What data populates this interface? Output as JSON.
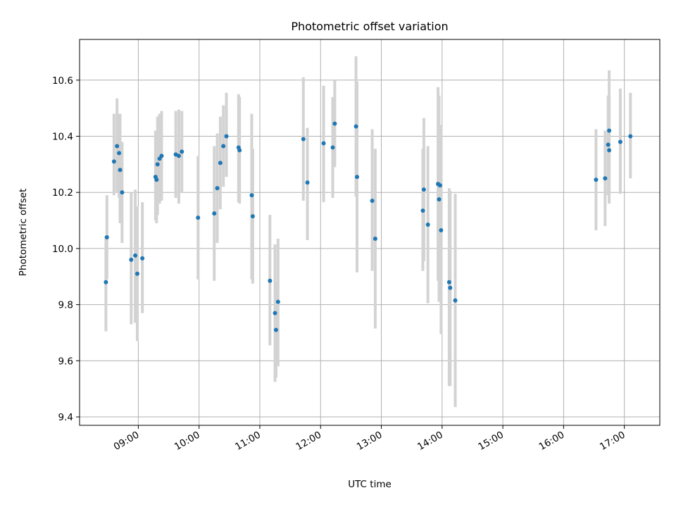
{
  "chart_data": {
    "type": "scatter",
    "title": "Photometric offset variation",
    "xlabel": "UTC time",
    "ylabel": "Photometric offset",
    "xlim": [
      "08:02",
      "17:35"
    ],
    "ylim": [
      9.37,
      10.745
    ],
    "x_ticks": [
      "09:00",
      "10:00",
      "11:00",
      "12:00",
      "13:00",
      "14:00",
      "15:00",
      "16:00",
      "17:00"
    ],
    "y_ticks": [
      "9.4",
      "9.6",
      "9.8",
      "10.0",
      "10.2",
      "10.4",
      "10.6"
    ],
    "grid": true,
    "point_color": "#1f77b4",
    "errorbar_color": "#d3d3d3",
    "points": [
      {
        "x": "08:28",
        "y": 9.88,
        "lo": 9.705,
        "hi": 10.045
      },
      {
        "x": "08:29",
        "y": 10.04,
        "lo": 9.89,
        "hi": 10.19
      },
      {
        "x": "08:36",
        "y": 10.31,
        "lo": 10.19,
        "hi": 10.48
      },
      {
        "x": "08:39",
        "y": 10.365,
        "lo": 10.2,
        "hi": 10.535
      },
      {
        "x": "08:41",
        "y": 10.34,
        "lo": 10.18,
        "hi": 10.48
      },
      {
        "x": "08:42",
        "y": 10.28,
        "lo": 10.09,
        "hi": 10.48
      },
      {
        "x": "08:44",
        "y": 10.2,
        "lo": 10.02,
        "hi": 10.38
      },
      {
        "x": "08:53",
        "y": 9.96,
        "lo": 9.73,
        "hi": 10.2
      },
      {
        "x": "08:57",
        "y": 9.975,
        "lo": 9.735,
        "hi": 10.21
      },
      {
        "x": "08:59",
        "y": 9.91,
        "lo": 9.67,
        "hi": 10.15
      },
      {
        "x": "09:04",
        "y": 9.965,
        "lo": 9.77,
        "hi": 10.165
      },
      {
        "x": "09:17",
        "y": 10.255,
        "lo": 10.1,
        "hi": 10.42
      },
      {
        "x": "09:18",
        "y": 10.245,
        "lo": 10.09,
        "hi": 10.42
      },
      {
        "x": "09:19",
        "y": 10.3,
        "lo": 10.12,
        "hi": 10.47
      },
      {
        "x": "09:21",
        "y": 10.32,
        "lo": 10.16,
        "hi": 10.48
      },
      {
        "x": "09:23",
        "y": 10.33,
        "lo": 10.17,
        "hi": 10.49
      },
      {
        "x": "09:37",
        "y": 10.335,
        "lo": 10.18,
        "hi": 10.49
      },
      {
        "x": "09:40",
        "y": 10.33,
        "lo": 10.16,
        "hi": 10.495
      },
      {
        "x": "09:43",
        "y": 10.345,
        "lo": 10.2,
        "hi": 10.49
      },
      {
        "x": "09:59",
        "y": 10.11,
        "lo": 9.89,
        "hi": 10.33
      },
      {
        "x": "10:15",
        "y": 10.125,
        "lo": 9.885,
        "hi": 10.365
      },
      {
        "x": "10:18",
        "y": 10.215,
        "lo": 10.02,
        "hi": 10.41
      },
      {
        "x": "10:21",
        "y": 10.305,
        "lo": 10.14,
        "hi": 10.47
      },
      {
        "x": "10:24",
        "y": 10.365,
        "lo": 10.22,
        "hi": 10.51
      },
      {
        "x": "10:27",
        "y": 10.4,
        "lo": 10.255,
        "hi": 10.555
      },
      {
        "x": "10:39",
        "y": 10.36,
        "lo": 10.165,
        "hi": 10.55
      },
      {
        "x": "10:40",
        "y": 10.35,
        "lo": 10.16,
        "hi": 10.54
      },
      {
        "x": "10:52",
        "y": 10.19,
        "lo": 9.89,
        "hi": 10.48
      },
      {
        "x": "10:53",
        "y": 10.115,
        "lo": 9.875,
        "hi": 10.355
      },
      {
        "x": "11:10",
        "y": 9.885,
        "lo": 9.655,
        "hi": 10.12
      },
      {
        "x": "11:15",
        "y": 9.77,
        "lo": 9.525,
        "hi": 10.015
      },
      {
        "x": "11:16",
        "y": 9.71,
        "lo": 9.54,
        "hi": 9.88
      },
      {
        "x": "11:18",
        "y": 9.81,
        "lo": 9.58,
        "hi": 10.035
      },
      {
        "x": "11:43",
        "y": 10.39,
        "lo": 10.17,
        "hi": 10.61
      },
      {
        "x": "11:47",
        "y": 10.235,
        "lo": 10.03,
        "hi": 10.43
      },
      {
        "x": "12:03",
        "y": 10.375,
        "lo": 10.165,
        "hi": 10.58
      },
      {
        "x": "12:12",
        "y": 10.36,
        "lo": 10.18,
        "hi": 10.54
      },
      {
        "x": "12:14",
        "y": 10.445,
        "lo": 10.29,
        "hi": 10.6
      },
      {
        "x": "12:35",
        "y": 10.435,
        "lo": 10.185,
        "hi": 10.685
      },
      {
        "x": "12:36",
        "y": 10.255,
        "lo": 9.915,
        "hi": 10.595
      },
      {
        "x": "12:51",
        "y": 10.17,
        "lo": 9.92,
        "hi": 10.425
      },
      {
        "x": "12:54",
        "y": 10.035,
        "lo": 9.715,
        "hi": 10.355
      },
      {
        "x": "13:41",
        "y": 10.135,
        "lo": 9.92,
        "hi": 10.355
      },
      {
        "x": "13:42",
        "y": 10.21,
        "lo": 9.955,
        "hi": 10.465
      },
      {
        "x": "13:46",
        "y": 10.085,
        "lo": 9.805,
        "hi": 10.365
      },
      {
        "x": "13:56",
        "y": 10.23,
        "lo": 9.885,
        "hi": 10.575
      },
      {
        "x": "13:57",
        "y": 10.175,
        "lo": 9.81,
        "hi": 10.545
      },
      {
        "x": "13:58",
        "y": 10.225,
        "lo": 10.01,
        "hi": 10.44
      },
      {
        "x": "13:59",
        "y": 10.065,
        "lo": 9.695,
        "hi": 10.435
      },
      {
        "x": "14:07",
        "y": 9.88,
        "lo": 9.51,
        "hi": 10.215
      },
      {
        "x": "14:08",
        "y": 9.86,
        "lo": 9.51,
        "hi": 10.205
      },
      {
        "x": "14:13",
        "y": 9.815,
        "lo": 9.435,
        "hi": 10.195
      },
      {
        "x": "16:32",
        "y": 10.245,
        "lo": 10.065,
        "hi": 10.425
      },
      {
        "x": "16:41",
        "y": 10.25,
        "lo": 10.08,
        "hi": 10.42
      },
      {
        "x": "16:44",
        "y": 10.37,
        "lo": 10.19,
        "hi": 10.545
      },
      {
        "x": "16:45",
        "y": 10.42,
        "lo": 10.2,
        "hi": 10.635
      },
      {
        "x": "16:45",
        "y": 10.35,
        "lo": 10.16,
        "hi": 10.54
      },
      {
        "x": "16:56",
        "y": 10.38,
        "lo": 10.195,
        "hi": 10.57
      },
      {
        "x": "17:06",
        "y": 10.4,
        "lo": 10.25,
        "hi": 10.555
      }
    ]
  }
}
